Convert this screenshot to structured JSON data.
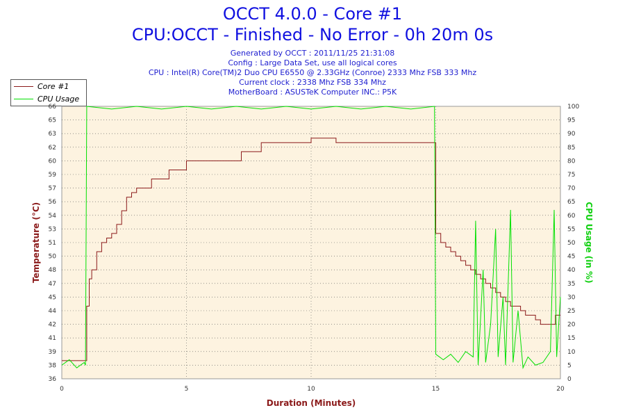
{
  "chart_data": {
    "type": "line",
    "title": "OCCT 4.0.0 - Core #1",
    "subtitle": "CPU:OCCT - Finished - No Error - 0h 20m 0s",
    "info_lines": [
      "Generated by OCCT : 2011/11/25 21:31:08",
      "Config : Large Data Set, use all logical cores",
      "CPU : Intel(R) Core(TM)2 Duo CPU E6550 @ 2.33GHz (Conroe) 2333 Mhz FSB 333 Mhz",
      "Current clock : 2338 Mhz FSB 334 Mhz",
      "MotherBoard : ASUSTeK Computer INC.: P5K"
    ],
    "xlabel": "Duration (Minutes)",
    "ylabel": "Temperature (°C)",
    "y2label": "CPU Usage (in %)",
    "xlim": [
      0,
      20
    ],
    "ylim": [
      36,
      66
    ],
    "y2lim": [
      0,
      100
    ],
    "x_ticks": [
      "0",
      "5",
      "10",
      "15",
      "20"
    ],
    "y_ticks": [
      "36",
      "38",
      "39",
      "41",
      "42",
      "44",
      "45",
      "47",
      "48",
      "50",
      "51",
      "53",
      "54",
      "56",
      "57",
      "59",
      "60",
      "62",
      "63",
      "65",
      "66"
    ],
    "y2_ticks": [
      "0",
      "5",
      "10",
      "15",
      "20",
      "25",
      "30",
      "35",
      "40",
      "45",
      "50",
      "55",
      "60",
      "65",
      "70",
      "75",
      "80",
      "85",
      "90",
      "95",
      "100"
    ],
    "grid": true,
    "legend_placement": "top-left",
    "series": [
      {
        "name": "Core #1",
        "axis": "left",
        "color": "#8b1a1a",
        "points": [
          [
            0,
            38
          ],
          [
            0.95,
            38
          ],
          [
            1.0,
            44
          ],
          [
            1.1,
            47
          ],
          [
            1.2,
            48
          ],
          [
            1.4,
            50
          ],
          [
            1.6,
            51
          ],
          [
            1.8,
            51.5
          ],
          [
            2.0,
            52
          ],
          [
            2.2,
            53
          ],
          [
            2.4,
            54.5
          ],
          [
            2.6,
            56
          ],
          [
            2.8,
            56.5
          ],
          [
            3.0,
            57
          ],
          [
            3.3,
            57
          ],
          [
            3.6,
            58
          ],
          [
            4.0,
            58
          ],
          [
            4.3,
            59
          ],
          [
            4.6,
            59
          ],
          [
            5.0,
            60
          ],
          [
            5.5,
            60
          ],
          [
            6.0,
            60
          ],
          [
            6.5,
            60
          ],
          [
            7.0,
            60
          ],
          [
            7.2,
            61
          ],
          [
            7.5,
            61
          ],
          [
            8.0,
            62
          ],
          [
            8.5,
            62
          ],
          [
            9.0,
            62
          ],
          [
            9.5,
            62
          ],
          [
            10.0,
            62.5
          ],
          [
            10.5,
            62.5
          ],
          [
            11.0,
            62
          ],
          [
            11.5,
            62
          ],
          [
            12.0,
            62
          ],
          [
            12.5,
            62
          ],
          [
            13.0,
            62
          ],
          [
            13.5,
            62
          ],
          [
            14.0,
            62
          ],
          [
            14.5,
            62
          ],
          [
            14.9,
            62
          ],
          [
            15.0,
            52
          ],
          [
            15.2,
            51
          ],
          [
            15.4,
            50.5
          ],
          [
            15.6,
            50
          ],
          [
            15.8,
            49.5
          ],
          [
            16.0,
            49
          ],
          [
            16.2,
            48.5
          ],
          [
            16.4,
            48
          ],
          [
            16.6,
            47.5
          ],
          [
            16.8,
            47
          ],
          [
            17.0,
            46.5
          ],
          [
            17.2,
            46
          ],
          [
            17.4,
            45.5
          ],
          [
            17.6,
            45
          ],
          [
            17.8,
            44.5
          ],
          [
            18.0,
            44
          ],
          [
            18.2,
            44
          ],
          [
            18.4,
            43.5
          ],
          [
            18.6,
            43
          ],
          [
            18.8,
            43
          ],
          [
            19.0,
            42.5
          ],
          [
            19.2,
            42
          ],
          [
            19.4,
            42
          ],
          [
            19.6,
            42
          ],
          [
            19.8,
            43
          ],
          [
            20.0,
            43
          ]
        ]
      },
      {
        "name": "CPU Usage",
        "axis": "right",
        "color": "#00e000",
        "points": [
          [
            0,
            5
          ],
          [
            0.3,
            7
          ],
          [
            0.6,
            4
          ],
          [
            0.9,
            6
          ],
          [
            0.95,
            5
          ],
          [
            1.0,
            100
          ],
          [
            2,
            99
          ],
          [
            3,
            100
          ],
          [
            4,
            99
          ],
          [
            5,
            100
          ],
          [
            6,
            99
          ],
          [
            7,
            100
          ],
          [
            8,
            99
          ],
          [
            9,
            100
          ],
          [
            10,
            99
          ],
          [
            11,
            100
          ],
          [
            12,
            99
          ],
          [
            13,
            100
          ],
          [
            14,
            99
          ],
          [
            14.95,
            100
          ],
          [
            15.0,
            9
          ],
          [
            15.3,
            7
          ],
          [
            15.6,
            9
          ],
          [
            15.9,
            6
          ],
          [
            16.2,
            10
          ],
          [
            16.5,
            8
          ],
          [
            16.6,
            58
          ],
          [
            16.7,
            5
          ],
          [
            16.9,
            40
          ],
          [
            17.0,
            6
          ],
          [
            17.2,
            20
          ],
          [
            17.4,
            55
          ],
          [
            17.5,
            8
          ],
          [
            17.7,
            30
          ],
          [
            17.8,
            5
          ],
          [
            18.0,
            62
          ],
          [
            18.1,
            6
          ],
          [
            18.3,
            25
          ],
          [
            18.5,
            4
          ],
          [
            18.7,
            8
          ],
          [
            19.0,
            5
          ],
          [
            19.3,
            6
          ],
          [
            19.6,
            10
          ],
          [
            19.75,
            62
          ],
          [
            19.85,
            8
          ],
          [
            20.0,
            30
          ]
        ]
      }
    ]
  }
}
